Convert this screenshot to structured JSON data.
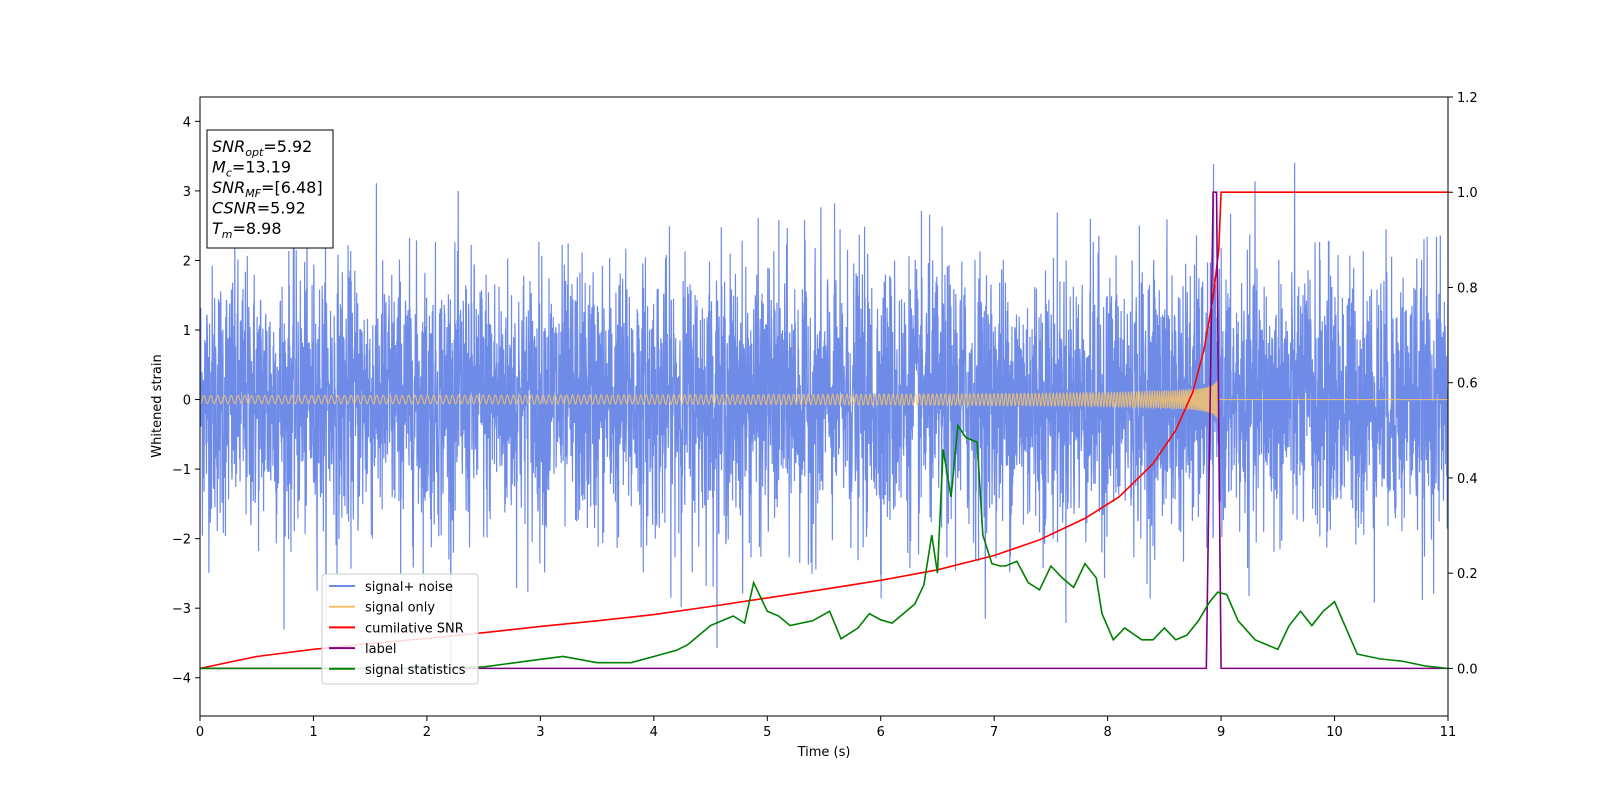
{
  "chart_data": {
    "type": "line",
    "xlabel": "Time (s)",
    "ylabel": "Whitened strain",
    "xlim": [
      0,
      11
    ],
    "ylim_left": [
      -4.55,
      4.35
    ],
    "ylim_right": [
      -0.1,
      1.2
    ],
    "xticks": [
      "0",
      "1",
      "2",
      "3",
      "4",
      "5",
      "6",
      "7",
      "8",
      "9",
      "10",
      "11"
    ],
    "yticks_left": [
      "−4",
      "−3",
      "−2",
      "−1",
      "0",
      "1",
      "2",
      "3",
      "4"
    ],
    "yticks_right": [
      "0.0",
      "0.2",
      "0.4",
      "0.6",
      "0.8",
      "1.0",
      "1.2"
    ],
    "grid": false,
    "legend": {
      "placement": "lower-left",
      "entries": [
        "signal+ noise",
        "signal only",
        "cumilative SNR",
        "label",
        "signal statistics"
      ]
    },
    "annotation": {
      "lines": [
        {
          "sym": "SNR",
          "sub": "opt",
          "value": "=5.92"
        },
        {
          "sym": "M",
          "sub": "c",
          "value": "=13.19"
        },
        {
          "sym": "SNR",
          "sub": "MF",
          "value": "=[6.48]"
        },
        {
          "sym": "CSNR",
          "sub": "",
          "value": "=5.92"
        },
        {
          "sym": "T",
          "sub": "m",
          "value": "=8.98"
        }
      ]
    },
    "series": [
      {
        "name": "signal+ noise",
        "axis": "left",
        "color": "#6f8be8",
        "style": "noise",
        "stdev": 0.95,
        "x_range": [
          0,
          11
        ]
      },
      {
        "name": "signal only",
        "axis": "left",
        "color": "#f5c26b",
        "style": "chirp",
        "merger_time": 8.98,
        "peak_amplitude": 0.45
      },
      {
        "name": "cumilative SNR",
        "axis": "right",
        "color": "#ff0000",
        "x": [
          0,
          0.5,
          1,
          1.5,
          2,
          2.5,
          3,
          3.5,
          4,
          4.5,
          5,
          5.5,
          6,
          6.5,
          7,
          7.4,
          7.8,
          8.1,
          8.4,
          8.6,
          8.75,
          8.85,
          8.93,
          8.98,
          9,
          11
        ],
        "y": [
          0,
          0.025,
          0.04,
          0.052,
          0.063,
          0.075,
          0.088,
          0.1,
          0.113,
          0.13,
          0.148,
          0.166,
          0.185,
          0.207,
          0.237,
          0.27,
          0.315,
          0.36,
          0.43,
          0.5,
          0.58,
          0.67,
          0.78,
          0.88,
          1.0,
          1.0
        ]
      },
      {
        "name": "label",
        "axis": "right",
        "color": "#800080",
        "x": [
          0,
          8.87,
          8.93,
          8.96,
          9.0,
          11
        ],
        "y": [
          0,
          0,
          1.0,
          1.0,
          0,
          0
        ]
      },
      {
        "name": "signal statistics",
        "axis": "right",
        "color": "#008000",
        "x": [
          0,
          1,
          2,
          2.5,
          2.9,
          3.2,
          3.5,
          3.8,
          4.0,
          4.2,
          4.3,
          4.5,
          4.6,
          4.7,
          4.8,
          4.88,
          5.0,
          5.1,
          5.2,
          5.4,
          5.55,
          5.65,
          5.8,
          5.9,
          6.0,
          6.1,
          6.2,
          6.3,
          6.38,
          6.45,
          6.5,
          6.55,
          6.62,
          6.68,
          6.75,
          6.85,
          6.9,
          6.98,
          7.05,
          7.1,
          7.2,
          7.3,
          7.4,
          7.5,
          7.6,
          7.7,
          7.8,
          7.9,
          7.95,
          8.05,
          8.15,
          8.3,
          8.4,
          8.5,
          8.6,
          8.7,
          8.8,
          8.9,
          8.97,
          9.05,
          9.15,
          9.3,
          9.5,
          9.6,
          9.7,
          9.8,
          9.9,
          10.0,
          10.2,
          10.4,
          10.6,
          10.8,
          11.0
        ],
        "y": [
          0,
          0,
          0,
          0.003,
          0.016,
          0.025,
          0.012,
          0.012,
          0.025,
          0.038,
          0.05,
          0.09,
          0.1,
          0.11,
          0.095,
          0.18,
          0.12,
          0.11,
          0.09,
          0.1,
          0.12,
          0.062,
          0.085,
          0.115,
          0.102,
          0.095,
          0.115,
          0.135,
          0.175,
          0.28,
          0.2,
          0.46,
          0.36,
          0.51,
          0.485,
          0.475,
          0.28,
          0.22,
          0.215,
          0.215,
          0.225,
          0.18,
          0.165,
          0.215,
          0.19,
          0.17,
          0.22,
          0.19,
          0.115,
          0.06,
          0.085,
          0.06,
          0.06,
          0.085,
          0.06,
          0.07,
          0.1,
          0.14,
          0.16,
          0.155,
          0.1,
          0.06,
          0.04,
          0.09,
          0.12,
          0.09,
          0.12,
          0.14,
          0.03,
          0.02,
          0.015,
          0.005,
          0
        ]
      }
    ]
  }
}
